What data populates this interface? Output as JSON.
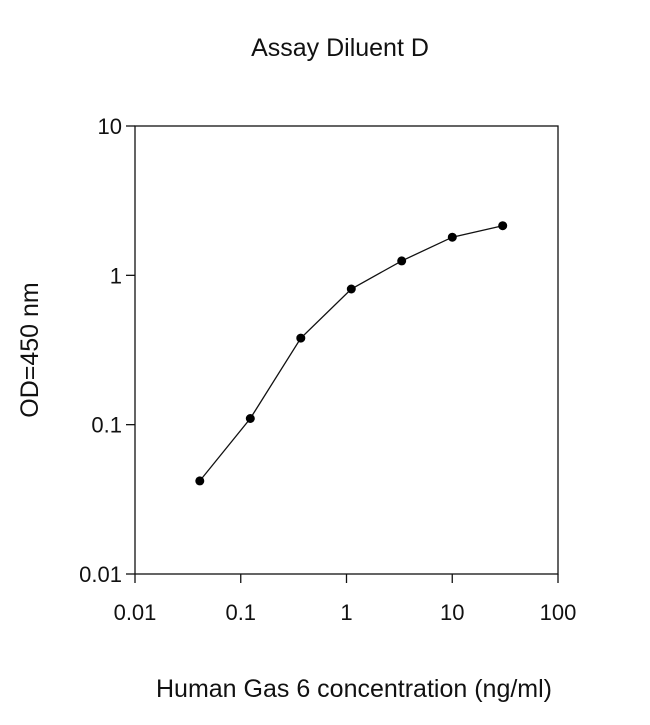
{
  "chart_data": {
    "type": "line",
    "title": "Assay Diluent D",
    "xlabel": "Human Gas 6 concentration (ng/ml)",
    "ylabel": "OD=450 nm",
    "xscale": "log",
    "yscale": "log",
    "xlim": [
      0.01,
      100
    ],
    "ylim": [
      0.01,
      10
    ],
    "xticks": [
      "0.01",
      "0.1",
      "1",
      "10",
      "100"
    ],
    "yticks": [
      "0.01",
      "0.1",
      "1",
      "10"
    ],
    "grid": false,
    "legend": "none",
    "series": [
      {
        "x": [
          0.041,
          0.123,
          0.37,
          1.11,
          3.33,
          10,
          30
        ],
        "y": [
          0.042,
          0.11,
          0.38,
          0.81,
          1.25,
          1.8,
          2.15
        ]
      }
    ],
    "colors": {
      "line": "#111111",
      "marker": "#000000",
      "axis": "#111111"
    }
  }
}
